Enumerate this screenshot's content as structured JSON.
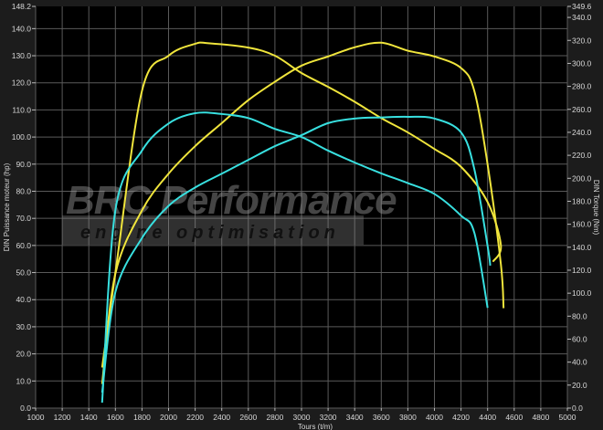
{
  "chart_data": {
    "type": "line",
    "xlabel": "Tours (t/m)",
    "ylabel_left": "DIN Puissance moteur (hp)",
    "ylabel_right": "DIN Torque (Nm)",
    "xlim": [
      1000,
      5000
    ],
    "ylim_left": [
      0,
      148.2
    ],
    "ylim_right": [
      0,
      349.6
    ],
    "x_ticks": [
      1000,
      1200,
      1400,
      1600,
      1800,
      2000,
      2200,
      2400,
      2600,
      2800,
      3000,
      3200,
      3400,
      3600,
      3800,
      4000,
      4200,
      4400,
      4600,
      4800,
      5000
    ],
    "y_left_ticks": [
      "0.0",
      "10.0",
      "20.0",
      "30.0",
      "40.0",
      "50.0",
      "60.0",
      "70.0",
      "80.0",
      "90.0",
      "100.0",
      "110.0",
      "120.0",
      "130.0",
      "140.0",
      "148.2"
    ],
    "y_right_ticks": [
      "0.0",
      "20.0",
      "40.0",
      "60.0",
      "80.0",
      "100.0",
      "120.0",
      "140.0",
      "160.0",
      "180.0",
      "200.0",
      "220.0",
      "240.0",
      "260.0",
      "280.0",
      "300.0",
      "320.0",
      "340.0",
      "349.6"
    ],
    "grid": true,
    "series": [
      {
        "axis": "left",
        "color": "#f0e53c",
        "x": [
          1500,
          1600,
          1800,
          2000,
          2200,
          2300,
          2600,
          2800,
          3000,
          3200,
          3400,
          3600,
          3800,
          4000,
          4200,
          4400,
          4500,
          4440
        ],
        "y": [
          15,
          50,
          117,
          130,
          134.4,
          134.6,
          133,
          130,
          123.6,
          118.5,
          113,
          107,
          101.7,
          95.6,
          89,
          76,
          60,
          54
        ]
      },
      {
        "axis": "right",
        "color": "#f0e53c",
        "x": [
          1500,
          1600,
          1800,
          2000,
          2200,
          2400,
          2600,
          2800,
          3000,
          3200,
          3400,
          3600,
          3800,
          4000,
          4200,
          4300,
          4400,
          4500,
          4520
        ],
        "y": [
          21,
          117,
          172,
          204,
          228,
          248,
          268,
          284,
          298,
          306,
          314,
          318,
          311,
          306,
          296,
          276,
          212,
          125,
          87
        ]
      },
      {
        "axis": "left",
        "color": "#38e0e0",
        "x": [
          1500,
          1600,
          1800,
          2000,
          2200,
          2400,
          2600,
          2800,
          3000,
          3200,
          3400,
          3600,
          3800,
          4000,
          4200,
          4300,
          4400
        ],
        "y": [
          2,
          73,
          95,
          105,
          108.8,
          108.5,
          107,
          103,
          100,
          95,
          90.6,
          86.6,
          83,
          79,
          71,
          64.7,
          37
        ]
      },
      {
        "axis": "right",
        "color": "#38e0e0",
        "x": [
          1500,
          1600,
          1800,
          2000,
          2200,
          2400,
          2600,
          2800,
          3000,
          3200,
          3400,
          3600,
          3800,
          4000,
          4200,
          4300,
          4400,
          4420
        ],
        "y": [
          13.5,
          101,
          148,
          176,
          192,
          204,
          216,
          228,
          237.5,
          248,
          252,
          253,
          253.5,
          252,
          240,
          208,
          141,
          124
        ]
      }
    ]
  },
  "watermark": {
    "brand": "BRC Performance",
    "tagline": "engine optimisation"
  },
  "colors": {
    "background": "#1c1c1c",
    "plot": "#000000",
    "grid": "#5a5a5a"
  }
}
